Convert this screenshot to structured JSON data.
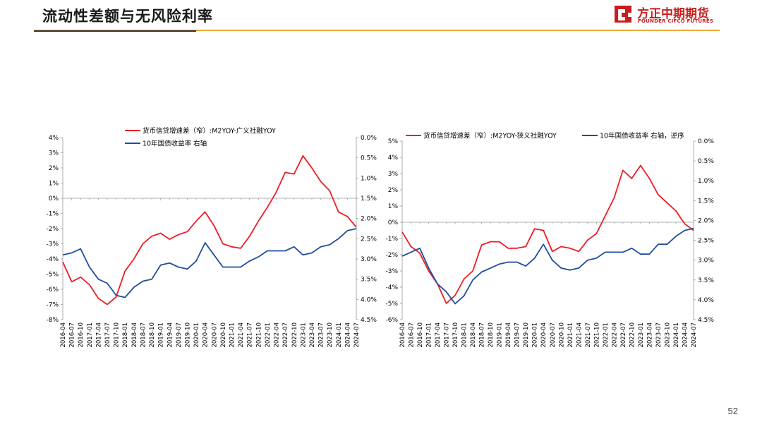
{
  "page": {
    "title": "流动性差额与无风险利率",
    "page_number": "52",
    "logo_cn": "方正中期期货",
    "logo_en": "FOUNDER CIFCO FUTURES",
    "accent_color": "#e8a83c",
    "brand_color": "#c81e1e"
  },
  "chart_data": [
    {
      "type": "line",
      "dates": [
        "2016-04",
        "2016-07",
        "2016-10",
        "2017-01",
        "2017-04",
        "2017-07",
        "2017-10",
        "2018-01",
        "2018-04",
        "2018-07",
        "2018-10",
        "2019-01",
        "2019-04",
        "2019-07",
        "2019-10",
        "2020-01",
        "2020-04",
        "2020-07",
        "2020-10",
        "2021-01",
        "2021-04",
        "2021-07",
        "2021-10",
        "2022-01",
        "2022-04",
        "2022-07",
        "2022-10",
        "2023-01",
        "2023-04",
        "2023-07",
        "2023-10",
        "2024-01",
        "2024-04",
        "2024-07"
      ],
      "left_axis": {
        "min": -8,
        "max": 4,
        "step": 1,
        "ticks": [
          "4%",
          "3%",
          "2%",
          "1%",
          "0%",
          "-1%",
          "-2%",
          "-3%",
          "-4%",
          "-5%",
          "-6%",
          "-7%",
          "-8%"
        ]
      },
      "right_axis": {
        "reversed": true,
        "min": 0.0,
        "max": 4.5,
        "step": 0.5,
        "ticks": [
          "0.0%",
          "0.5%",
          "1.0%",
          "1.5%",
          "2.0%",
          "2.5%",
          "3.0%",
          "3.5%",
          "4.0%",
          "4.5%"
        ]
      },
      "series": [
        {
          "name": "货币信贷增速差（窄）:M2YOY-广义社融YOY",
          "color": "#ee1c25",
          "axis": "left",
          "values": [
            -4.2,
            -5.5,
            -5.2,
            -5.7,
            -6.6,
            -7.0,
            -6.5,
            -4.8,
            -4.0,
            -3.0,
            -2.5,
            -2.3,
            -2.7,
            -2.4,
            -2.2,
            -1.5,
            -0.9,
            -1.8,
            -3.0,
            -3.2,
            -3.3,
            -2.5,
            -1.5,
            -0.6,
            0.4,
            1.7,
            1.6,
            2.8,
            2.0,
            1.1,
            0.5,
            -0.9,
            -1.2,
            -1.9
          ]
        },
        {
          "name": "10年国债收益率 右轴",
          "color": "#1f4e9a",
          "axis": "right",
          "values": [
            2.9,
            2.85,
            2.75,
            3.2,
            3.5,
            3.6,
            3.9,
            3.95,
            3.7,
            3.55,
            3.5,
            3.15,
            3.1,
            3.2,
            3.25,
            3.05,
            2.6,
            2.9,
            3.2,
            3.2,
            3.2,
            3.05,
            2.95,
            2.8,
            2.8,
            2.8,
            2.7,
            2.9,
            2.85,
            2.7,
            2.65,
            2.5,
            2.3,
            2.25
          ]
        }
      ]
    },
    {
      "type": "line",
      "dates": [
        "2016-04",
        "2016-07",
        "2016-10",
        "2017-01",
        "2017-04",
        "2017-07",
        "2017-10",
        "2018-01",
        "2018-04",
        "2018-07",
        "2018-10",
        "2019-01",
        "2019-04",
        "2019-07",
        "2019-10",
        "2020-01",
        "2020-04",
        "2020-07",
        "2020-10",
        "2021-01",
        "2021-04",
        "2021-07",
        "2021-10",
        "2022-01",
        "2022-04",
        "2022-07",
        "2022-10",
        "2023-01",
        "2023-04",
        "2023-07",
        "2023-10",
        "2024-01",
        "2024-04",
        "2024-07"
      ],
      "left_axis": {
        "min": -6,
        "max": 5,
        "step": 1,
        "ticks": [
          "5%",
          "4%",
          "3%",
          "2%",
          "1%",
          "0%",
          "-1%",
          "-2%",
          "-3%",
          "-4%",
          "-5%",
          "-6%"
        ]
      },
      "right_axis": {
        "reversed": true,
        "min": 0.0,
        "max": 4.5,
        "step": 0.5,
        "ticks": [
          "0.0%",
          "0.5%",
          "1.0%",
          "1.5%",
          "2.0%",
          "2.5%",
          "3.0%",
          "3.5%",
          "4.0%",
          "4.5%"
        ]
      },
      "series": [
        {
          "name": "货币信贷增速差（窄）:M2YOY-狭义社融YOY",
          "color": "#ee1c25",
          "axis": "left",
          "values": [
            -0.6,
            -1.5,
            -1.9,
            -3.0,
            -3.8,
            -5.0,
            -4.5,
            -3.5,
            -3.0,
            -1.4,
            -1.2,
            -1.2,
            -1.6,
            -1.6,
            -1.5,
            -0.4,
            -0.5,
            -1.8,
            -1.5,
            -1.6,
            -1.8,
            -1.1,
            -0.7,
            0.4,
            1.5,
            3.2,
            2.7,
            3.5,
            2.7,
            1.7,
            1.2,
            0.7,
            -0.1,
            -0.5
          ]
        },
        {
          "name": "10年国债收益率 右轴，逆序",
          "color": "#1f4e9a",
          "axis": "right",
          "values": [
            2.9,
            2.8,
            2.7,
            3.2,
            3.6,
            3.8,
            4.1,
            3.9,
            3.5,
            3.3,
            3.2,
            3.1,
            3.05,
            3.05,
            3.15,
            2.95,
            2.6,
            3.0,
            3.2,
            3.25,
            3.2,
            3.0,
            2.95,
            2.8,
            2.8,
            2.8,
            2.7,
            2.85,
            2.85,
            2.6,
            2.6,
            2.4,
            2.25,
            2.2
          ]
        }
      ]
    }
  ]
}
